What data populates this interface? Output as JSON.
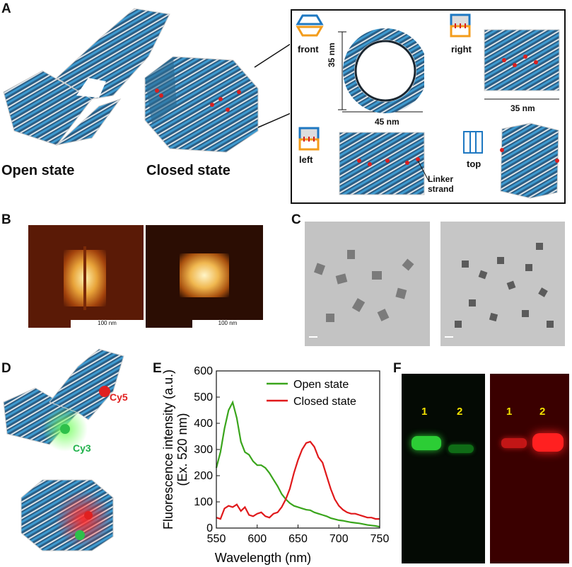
{
  "panel_letters": {
    "A": "A",
    "B": "B",
    "C": "C",
    "D": "D",
    "E": "E",
    "F": "F"
  },
  "panel_a": {
    "open_state": "Open state",
    "closed_state": "Closed state",
    "views": {
      "front": "front",
      "right": "right",
      "left": "left",
      "top": "top"
    },
    "dims": {
      "height": "35 nm",
      "width": "45 nm",
      "right_width": "35 nm"
    },
    "linker_line1": "Linker",
    "linker_line2": "strand"
  },
  "panel_b": {
    "scale_left": "100 nm",
    "scale_right": "100 nm"
  },
  "panel_d": {
    "cy5": "Cy5",
    "cy3": "Cy3"
  },
  "panel_f": {
    "green_lanes": [
      "1",
      "2"
    ],
    "red_lanes": [
      "1",
      "2"
    ]
  },
  "colors": {
    "open": "#3aa51c",
    "closed": "#e0191b",
    "cy5": "#e02020",
    "cy3": "#1fb24a",
    "lane_num": "#f3e300"
  },
  "chart_data": {
    "type": "line",
    "xlabel": "Wavelength (nm)",
    "ylabel_line1": "Fluorescence intensity (a.u.)",
    "ylabel_line2": "(Ex. 520 nm)",
    "xlim": [
      550,
      750
    ],
    "ylim": [
      0,
      600
    ],
    "xticks": [
      550,
      600,
      650,
      700,
      750
    ],
    "yticks": [
      0,
      100,
      200,
      300,
      400,
      500,
      600
    ],
    "legend_position": "top-right",
    "series": [
      {
        "name": "Open state",
        "color": "#3aa51c",
        "x": [
          550,
          555,
          560,
          565,
          570,
          575,
          580,
          585,
          590,
          595,
          600,
          605,
          610,
          615,
          620,
          625,
          630,
          635,
          640,
          645,
          650,
          655,
          660,
          665,
          670,
          675,
          680,
          685,
          690,
          695,
          700,
          705,
          710,
          715,
          720,
          725,
          730,
          735,
          740,
          745,
          750
        ],
        "y": [
          230,
          290,
          380,
          450,
          480,
          420,
          330,
          290,
          280,
          255,
          240,
          240,
          230,
          210,
          185,
          160,
          130,
          110,
          95,
          85,
          80,
          75,
          70,
          68,
          60,
          55,
          50,
          45,
          38,
          34,
          30,
          28,
          25,
          22,
          20,
          18,
          15,
          12,
          10,
          8,
          5
        ]
      },
      {
        "name": "Closed state",
        "color": "#e0191b",
        "x": [
          550,
          555,
          560,
          565,
          570,
          575,
          580,
          585,
          590,
          595,
          600,
          605,
          610,
          615,
          620,
          625,
          630,
          635,
          640,
          645,
          650,
          655,
          660,
          665,
          670,
          675,
          680,
          685,
          690,
          695,
          700,
          705,
          710,
          715,
          720,
          725,
          730,
          735,
          740,
          745,
          750
        ],
        "y": [
          40,
          35,
          75,
          85,
          80,
          90,
          65,
          80,
          50,
          45,
          55,
          60,
          45,
          40,
          55,
          60,
          80,
          110,
          150,
          210,
          260,
          300,
          325,
          330,
          310,
          270,
          250,
          200,
          150,
          110,
          85,
          70,
          60,
          55,
          55,
          50,
          45,
          40,
          40,
          35,
          35
        ]
      }
    ]
  }
}
